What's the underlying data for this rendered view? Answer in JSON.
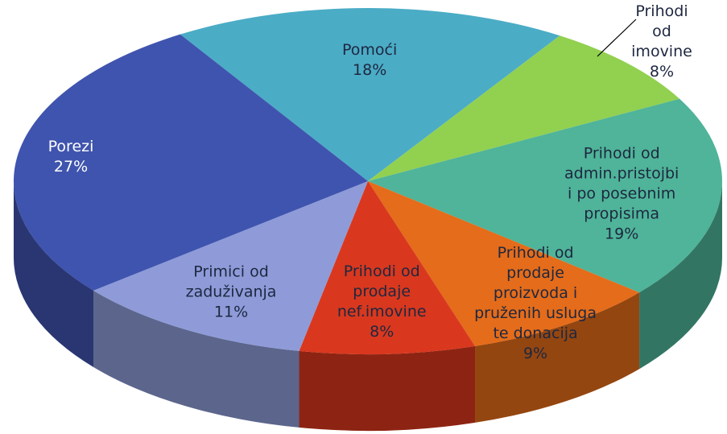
{
  "chart_data": {
    "type": "pie",
    "categories": [
      "Pomoći",
      "Prihodi od\nimovine",
      "Prihodi od\nadmin.pristojbi\ni po posebnim\npropisima",
      "Prihodi od\nprodaje\nproizvoda i\npruženih usluga\nte donacija",
      "Prihodi od\nprodaje\nnef.imovine",
      "Primici od\nzaduživanja",
      "Porezi"
    ],
    "values": [
      18,
      8,
      19,
      9,
      8,
      11,
      27
    ],
    "value_labels": [
      "18%",
      "8%",
      "19%",
      "9%",
      "8%",
      "11%",
      "27%"
    ],
    "colors": [
      "#4bacc6",
      "#92d050",
      "#4fb499",
      "#e46c1a",
      "#d9381e",
      "#8e9bd8",
      "#3f54ae"
    ]
  }
}
